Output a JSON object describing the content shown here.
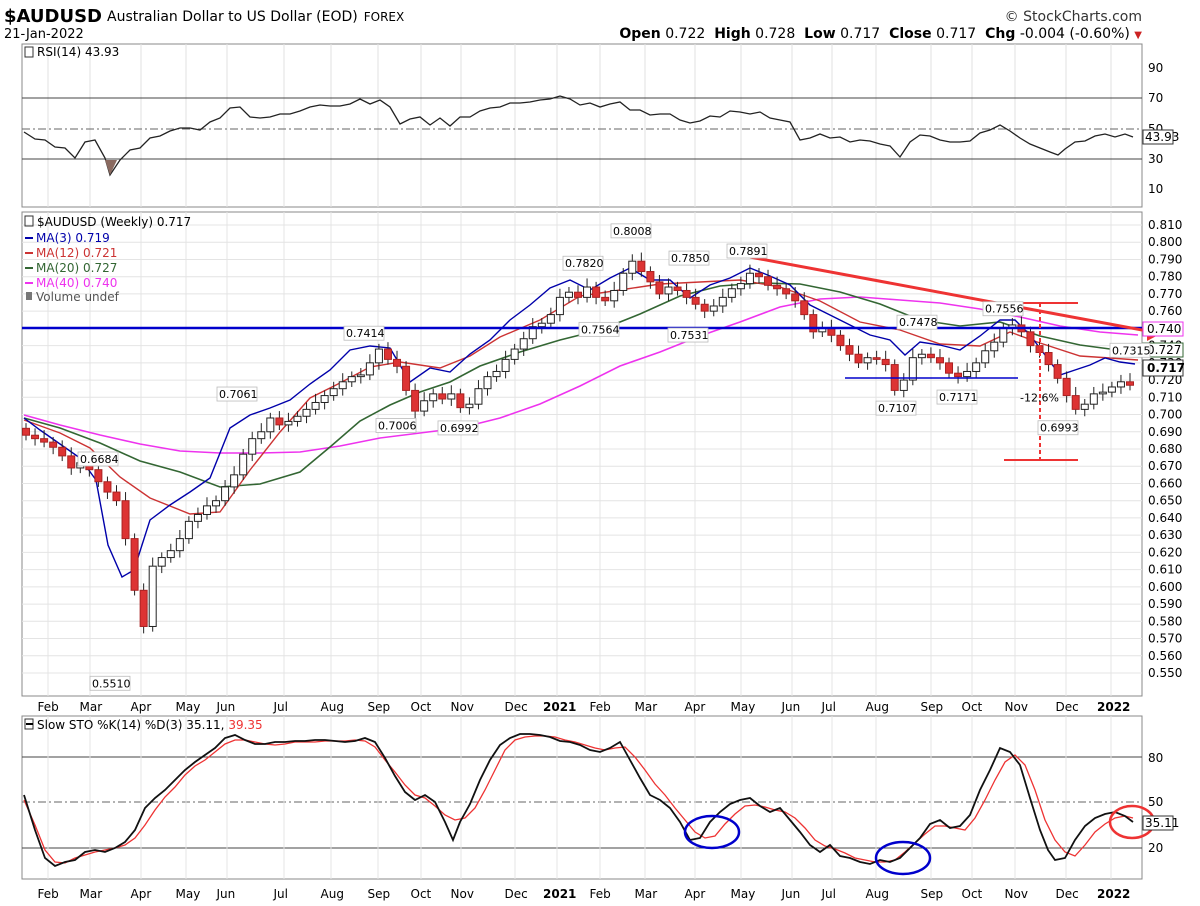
{
  "header": {
    "symbol": "$AUDUSD",
    "description": "Australian Dollar to US Dollar (EOD)",
    "exchange": "FOREX",
    "date": "21-Jan-2022",
    "brand": "© StockCharts.com",
    "open_label": "Open",
    "open": "0.722",
    "high_label": "High",
    "high": "0.728",
    "low_label": "Low",
    "low": "0.717",
    "close_label": "Close",
    "close": "0.717",
    "chg_label": "Chg",
    "chg": "-0.004 (-0.60%)"
  },
  "colors": {
    "ma3": "#0000aa",
    "ma12": "#cc3333",
    "ma20": "#336633",
    "ma40": "#ee33ee",
    "up_candle": "#ffffff",
    "down_candle": "#dd3333",
    "trend": "#ee3333",
    "support": "#0000cc",
    "stoch_k": "#000000",
    "stoch_d": "#ee3333",
    "circle_blue": "#0000cc",
    "circle_red": "#ee3333"
  },
  "rsi_panel": {
    "legend": "RSI(14) 43.93",
    "last_value": "43.93",
    "ticks": [
      "90",
      "70",
      "50",
      "30",
      "10"
    ]
  },
  "price_panel": {
    "legend_title": "$AUDUSD (Weekly) 0.717",
    "legend_items": [
      "MA(3) 0.719",
      "MA(12) 0.721",
      "MA(20) 0.727",
      "MA(40) 0.740",
      "Volume undef"
    ],
    "ticks": [
      "0.810",
      "0.800",
      "0.790",
      "0.780",
      "0.770",
      "0.760",
      "0.750",
      "0.740",
      "0.730",
      "0.720",
      "0.710",
      "0.700",
      "0.690",
      "0.680",
      "0.670",
      "0.660",
      "0.650",
      "0.640",
      "0.630",
      "0.620",
      "0.610",
      "0.600",
      "0.590",
      "0.580",
      "0.570",
      "0.560",
      "0.550"
    ],
    "last_price": "0.717",
    "ma40_tag": "0.740",
    "ma20_tag": "0.727",
    "annotations": [
      "0.5510",
      "0.6684",
      "0.7061",
      "0.7414",
      "0.7006",
      "0.6992",
      "0.7820",
      "0.8008",
      "0.7850",
      "0.7564",
      "0.7531",
      "0.7891",
      "0.7478",
      "0.7556",
      "0.7107",
      "0.7171",
      "0.6993",
      "0.7315",
      "-12.6%"
    ]
  },
  "stoch_panel": {
    "legend": "Slow STO %K(14) %D(3) 35.11,",
    "legend_d": "39.35",
    "last_value": "35.11",
    "ticks": [
      "80",
      "50",
      "20"
    ]
  },
  "x_axis": {
    "labels": [
      "Feb",
      "Mar",
      "Apr",
      "May",
      "Jun",
      "Jul",
      "Aug",
      "Sep",
      "Oct",
      "Nov",
      "Dec",
      "2021",
      "Feb",
      "Mar",
      "Apr",
      "May",
      "Jun",
      "Jul",
      "Aug",
      "Sep",
      "Oct",
      "Nov",
      "Dec",
      "2022"
    ]
  },
  "chart_data": {
    "type": "candlestick",
    "title": "$AUDUSD (Weekly)",
    "series_price_close": [
      {
        "date": "2020-01-03",
        "close": 0.695
      },
      {
        "date": "2020-01-31",
        "close": 0.669
      },
      {
        "date": "2020-02-28",
        "close": 0.65
      },
      {
        "date": "2020-03-20",
        "close": 0.57
      },
      {
        "date": "2020-04-03",
        "close": 0.6
      },
      {
        "date": "2020-05-01",
        "close": 0.65
      },
      {
        "date": "2020-06-05",
        "close": 0.695
      },
      {
        "date": "2020-07-03",
        "close": 0.69
      },
      {
        "date": "2020-08-28",
        "close": 0.735
      },
      {
        "date": "2020-09-25",
        "close": 0.702
      },
      {
        "date": "2020-10-30",
        "close": 0.703
      },
      {
        "date": "2020-12-04",
        "close": 0.74
      },
      {
        "date": "2021-01-01",
        "close": 0.77
      },
      {
        "date": "2021-02-26",
        "close": 0.77
      },
      {
        "date": "2021-04-02",
        "close": 0.762
      },
      {
        "date": "2021-05-07",
        "close": 0.784
      },
      {
        "date": "2021-06-18",
        "close": 0.748
      },
      {
        "date": "2021-07-30",
        "close": 0.735
      },
      {
        "date": "2021-08-20",
        "close": 0.714
      },
      {
        "date": "2021-09-24",
        "close": 0.727
      },
      {
        "date": "2021-10-29",
        "close": 0.752
      },
      {
        "date": "2021-12-03",
        "close": 0.704
      },
      {
        "date": "2022-01-21",
        "close": 0.717
      }
    ],
    "price_labels": [
      {
        "label": "0.5510",
        "value": 0.551
      },
      {
        "label": "0.6684",
        "value": 0.6684
      },
      {
        "label": "0.7061",
        "value": 0.7061
      },
      {
        "label": "0.7414",
        "value": 0.7414
      },
      {
        "label": "0.7006",
        "value": 0.7006
      },
      {
        "label": "0.6992",
        "value": 0.6992
      },
      {
        "label": "0.7820",
        "value": 0.782
      },
      {
        "label": "0.8008",
        "value": 0.8008
      },
      {
        "label": "0.7850",
        "value": 0.785
      },
      {
        "label": "0.7564",
        "value": 0.7564
      },
      {
        "label": "0.7531",
        "value": 0.7531
      },
      {
        "label": "0.7891",
        "value": 0.7891
      },
      {
        "label": "0.7478",
        "value": 0.7478
      },
      {
        "label": "0.7556",
        "value": 0.7556
      },
      {
        "label": "0.7107",
        "value": 0.7107
      },
      {
        "label": "0.7171",
        "value": 0.7171
      },
      {
        "label": "0.6993",
        "value": 0.6993
      },
      {
        "label": "0.7315",
        "value": 0.7315
      }
    ],
    "ylim": [
      0.546,
      0.815
    ],
    "rsi_last": 43.93,
    "stoch_k_last": 35.11,
    "stoch_d_last": 39.35
  }
}
